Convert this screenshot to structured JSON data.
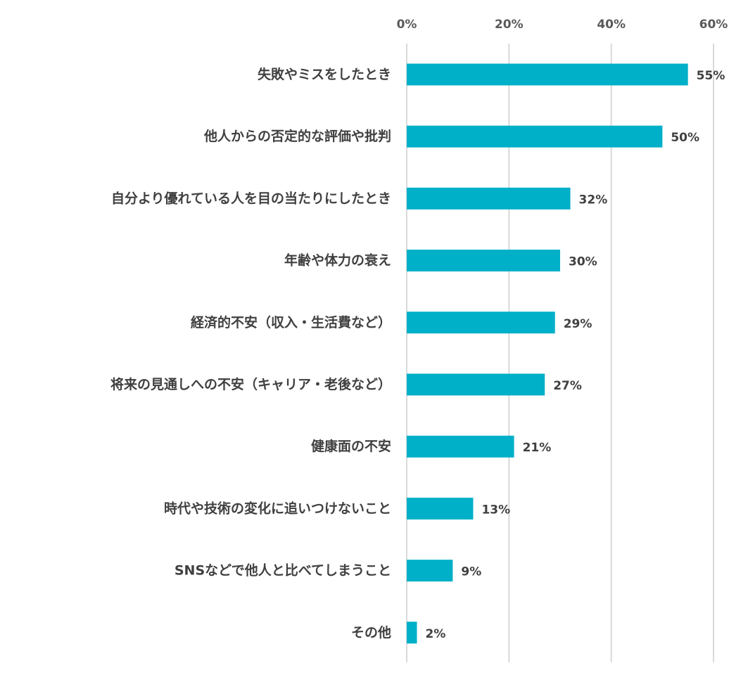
{
  "chart_data": {
    "type": "bar",
    "orientation": "horizontal",
    "categories": [
      "失敗やミスをしたとき",
      "他人からの否定的な評価や批判",
      "自分より優れている人を目の当たりにしたとき",
      "年齢や体力の衰え",
      "経済的不安（収入・生活費など）",
      "将来の見通しへの不安（キャリア・老後など）",
      "健康面の不安",
      "時代や技術の変化に追いつけないこと",
      "SNSなどで他人と比べてしまうこと",
      "その他"
    ],
    "values": [
      55,
      50,
      32,
      30,
      29,
      27,
      21,
      13,
      9,
      2
    ],
    "value_labels": [
      "55%",
      "50%",
      "32%",
      "30%",
      "29%",
      "27%",
      "21%",
      "13%",
      "9%",
      "2%"
    ],
    "x_ticks": [
      0,
      20,
      40,
      60
    ],
    "x_tick_labels": [
      "0%",
      "20%",
      "40%",
      "60%"
    ],
    "xlim": [
      0,
      60
    ],
    "axis_position": "top",
    "grid": true,
    "legend": "none",
    "colors": {
      "bar": "#00B0C8",
      "grid": "#D9D9D9",
      "text": "#404040",
      "tick_text": "#595959"
    }
  }
}
